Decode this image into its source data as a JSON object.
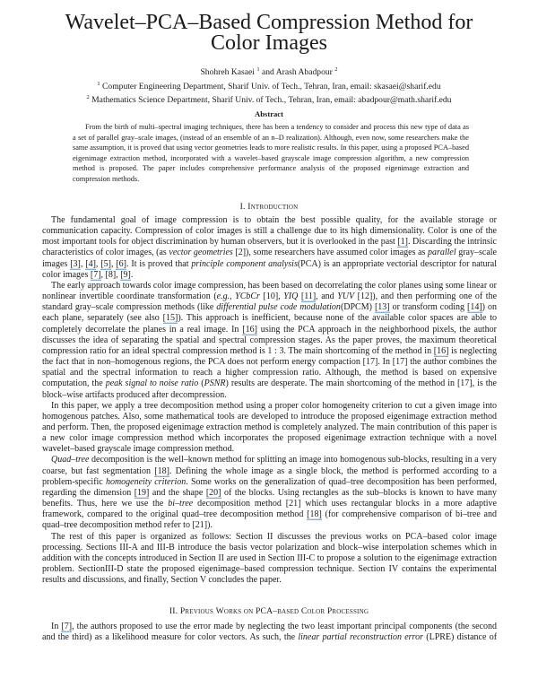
{
  "title": {
    "line1": "Wavelet–PCA–Based Compression Method for",
    "line2": "Color Images"
  },
  "authors": {
    "names": "Shohreh Kasaei",
    "sup1": "1",
    "and": "and Arash Abadpour",
    "sup2": "2",
    "affil1_sup": "1",
    "affil1": "Computer Engineering Department, Sharif Univ. of Tech., Tehran, Iran, email: skasaei@sharif.edu",
    "affil2_sup": "2",
    "affil2": "Mathematics Science Department, Sharif Univ. of Tech., Tehran, Iran, email: abadpour@math.sharif.edu"
  },
  "abstract": {
    "heading": "Abstract",
    "text": "From the birth of multi–spectral imaging techniques, there has been a tendency to consider and process this new type of data as a set of parallel gray–scale images, (instead of an ensemble of an n–D realization). Although, even now, some researchers make the same assumption, it is proved that using vector geometries leads to more realistic results. In this paper, using a proposed PCA–based eigenimage extraction method, incorporated with a wavelet–based grayscale image compression algorithm, a new compression method is proposed. The paper includes comprehensive performance analysis of the proposed eigenimage extraction and compression methods."
  },
  "section1": {
    "heading": "I. Introduction",
    "paragraphs": [
      [
        {
          "t": "The fundamental goal of image compression is to obtain the best possible quality, for the available storage or communication capacity. Compression of color images is still a challenge due to its high dimensionality. Color is one of the most important tools for object discrimination by human observers, but it is overlooked in the past "
        },
        {
          "t": "[1]",
          "s": "c"
        },
        {
          "t": ". Discarding the intrinsic characteristics of color images, (as "
        },
        {
          "t": "vector geometries",
          "s": "i"
        },
        {
          "t": " [2]), some researchers have assumed color images as "
        },
        {
          "t": "parallel",
          "s": "i"
        },
        {
          "t": " gray–scale images "
        },
        {
          "t": "[3]",
          "s": "c"
        },
        {
          "t": ", "
        },
        {
          "t": "[4]",
          "s": "c"
        },
        {
          "t": ", "
        },
        {
          "t": "[5]",
          "s": "c"
        },
        {
          "t": ", "
        },
        {
          "t": "[6]",
          "s": "c"
        },
        {
          "t": ". It is proved that "
        },
        {
          "t": "principle component analysis",
          "s": "i"
        },
        {
          "t": "(PCA) is an appropriate vectorial descriptor for natural color images "
        },
        {
          "t": "[7]",
          "s": "c"
        },
        {
          "t": ", [8], "
        },
        {
          "t": "[9]",
          "s": "c"
        },
        {
          "t": "."
        }
      ],
      [
        {
          "t": "The early approach towards color image compression, has been based on decorrelating the color planes using some linear or nonlinear invertible coordinate transformation ("
        },
        {
          "t": "e.g.,",
          "s": "i"
        },
        {
          "t": " "
        },
        {
          "t": "YCbCr",
          "s": "i"
        },
        {
          "t": " [10], "
        },
        {
          "t": "YIQ",
          "s": "i"
        },
        {
          "t": " "
        },
        {
          "t": "[11]",
          "s": "c"
        },
        {
          "t": ", and "
        },
        {
          "t": "YUV",
          "s": "i"
        },
        {
          "t": " [12]), and then performing one of the standard gray–scale compression methods (like "
        },
        {
          "t": "differential pulse code modulation",
          "s": "i"
        },
        {
          "t": "(DPCM) "
        },
        {
          "t": "[13]",
          "s": "c"
        },
        {
          "t": " or transform coding "
        },
        {
          "t": "[14]",
          "s": "c"
        },
        {
          "t": ") on each plane, separately (see also "
        },
        {
          "t": "[15]",
          "s": "c"
        },
        {
          "t": "). This approach is inefficient, because none of the available color spaces are able to completely decorrelate the planes in a real image. In "
        },
        {
          "t": "[16]",
          "s": "c"
        },
        {
          "t": " using the PCA approach in the neighborhood pixels, the author discusses the idea of separating the spatial and spectral compression stages. As the paper proves, the maximum theoretical compression ratio for an ideal spectral compression method is 1 : 3. The main shortcoming of the method in "
        },
        {
          "t": "[16]",
          "s": "c"
        },
        {
          "t": " is neglecting the fact that in non–homogenous regions, the PCA does not perform energy compaction [17]. In [17] the author combines the spatial and the spectral information to reach a higher compression ratio. Although, the method is based on expensive computation, the "
        },
        {
          "t": "peak signal to noise ratio",
          "s": "i"
        },
        {
          "t": " ("
        },
        {
          "t": "PSNR",
          "s": "i"
        },
        {
          "t": ") results are desperate. The main shortcoming of the method in [17], is the block–wise artifacts produced after decompression."
        }
      ],
      [
        {
          "t": "In this paper, we apply a tree decomposition method using a proper color homogeneity criterion to cut a given image into homogenous patches. Also, some mathematical tools are developed to introduce the proposed eigenimage extraction method and perform. Then, the proposed eigenimage extraction method is completely analyzed. The main contribution of this paper is a new color image compression method which incorporates the proposed eigenimage extraction technique with a novel wavelet–based grayscale image compression method."
        }
      ],
      [
        {
          "t": "Quad–tree",
          "s": "i"
        },
        {
          "t": " decomposition is the well–known method for splitting an image into homogenous sub-blocks, resulting in a very coarse, but fast segmentation "
        },
        {
          "t": "[18]",
          "s": "c"
        },
        {
          "t": ". Defining the whole image as a single block, the method is performed according to a problem-specific "
        },
        {
          "t": "homogeneity criterion",
          "s": "i"
        },
        {
          "t": ". Some works on the generalization of quad–tree decomposition has been performed, regarding the dimension "
        },
        {
          "t": "[19]",
          "s": "c"
        },
        {
          "t": " and the shape "
        },
        {
          "t": "[20]",
          "s": "c"
        },
        {
          "t": " of the blocks. Using rectangles as the sub–blocks is known to have many benefits. Thus, here we use the "
        },
        {
          "t": "bi–tree",
          "s": "i"
        },
        {
          "t": " decomposition method [21] which uses rectangular blocks in a more adaptive framework, compared to the original quad–tree decomposition method "
        },
        {
          "t": "[18]",
          "s": "c"
        },
        {
          "t": " (for comprehensive comparison of bi–tree and quad–tree decomposition method refer to [21])."
        }
      ],
      [
        {
          "t": "The rest of this paper is organized as follows: Section II discusses the previous works on PCA–based color image processing. Sections III-A and III-B introduce the basis vector polarization and block–wise interpolation schemes which in addition with the concepts introduced in Section II are used in Section III-C to propose a solution to the eigenimage extraction problem. SectionIII-D state the proposed eigenimage–based compression technique. Section IV contains the experimental results and discussions, and finally, Section V concludes the paper."
        }
      ]
    ]
  },
  "section2": {
    "heading": "II. Previous Works on PCA–based Color Processing",
    "paragraphs": [
      [
        {
          "t": "In "
        },
        {
          "t": "[7]",
          "s": "c"
        },
        {
          "t": ", the authors proposed to use the error made by neglecting the two least important principal components (the second and the third) as a likelihood measure for color vectors. As such, the "
        },
        {
          "t": "linear partial reconstruction error",
          "s": "i"
        },
        {
          "t": " (LPRE) distance of"
        }
      ]
    ]
  },
  "colors": {
    "citation_link": "#7fb2e0",
    "text": "#1a1a1a"
  }
}
